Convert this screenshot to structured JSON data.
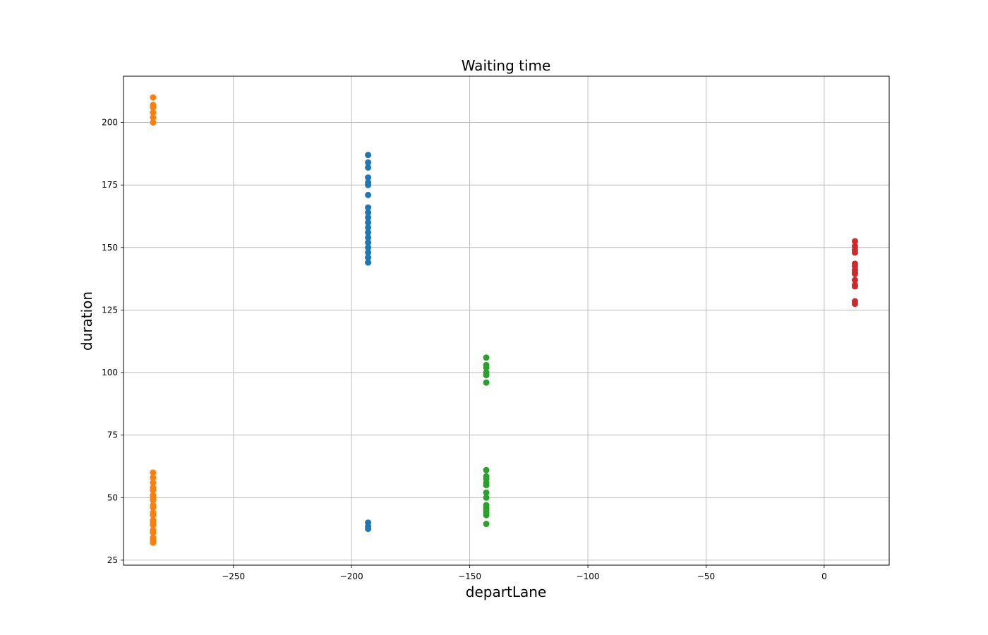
{
  "chart_data": {
    "type": "scatter",
    "title": "Waiting time",
    "xlabel": "departLane",
    "ylabel": "duration",
    "xlim": [
      -296.5,
      27.5
    ],
    "ylim": [
      23,
      218.5
    ],
    "xticks": [
      -250,
      -200,
      -150,
      -100,
      -50,
      0
    ],
    "xtick_labels": [
      "−250",
      "−200",
      "−150",
      "−100",
      "−50",
      "0"
    ],
    "yticks": [
      25,
      50,
      75,
      100,
      125,
      150,
      175,
      200
    ],
    "ytick_labels": [
      "25",
      "50",
      "75",
      "100",
      "125",
      "150",
      "175",
      "200"
    ],
    "grid": true,
    "series": [
      {
        "color": "#1f77b4",
        "x": -193,
        "y": [
          187,
          184,
          182,
          178,
          176,
          175,
          171,
          166,
          164,
          162,
          160,
          158,
          156,
          154,
          152,
          150,
          148,
          146,
          144,
          40,
          38.5,
          37.5
        ]
      },
      {
        "color": "#ff7f0e",
        "x": -284,
        "y": [
          210,
          207,
          206,
          204,
          202,
          200,
          60,
          58,
          56,
          54,
          53,
          51,
          50,
          49,
          47,
          46,
          44,
          43,
          41,
          40,
          39,
          37,
          36,
          34,
          33,
          32
        ]
      },
      {
        "color": "#2ca02c",
        "x": -143,
        "y": [
          106,
          103,
          102,
          100,
          99,
          96,
          61,
          58.5,
          57.5,
          56,
          55,
          52,
          50,
          47,
          46,
          45,
          44,
          43,
          39.5
        ]
      },
      {
        "color": "#d62728",
        "x": 13,
        "y": [
          152.5,
          150.5,
          149,
          148,
          143.5,
          142.5,
          141,
          140,
          139.5,
          137,
          135,
          134.5,
          128.5,
          127.5
        ]
      }
    ]
  }
}
